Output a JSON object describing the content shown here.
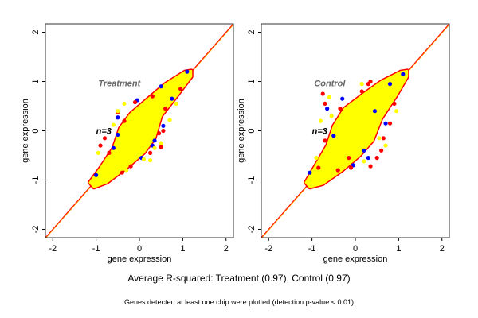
{
  "chart_data": [
    {
      "type": "scatter",
      "title": "Treatment",
      "annotation": "n=3",
      "xlabel": "gene expression",
      "ylabel": "gene expression",
      "xlim": [
        -2.17,
        2.17
      ],
      "ylim": [
        -2.17,
        2.17
      ],
      "xticks": [
        "-2",
        "-1",
        "0",
        "1",
        "2"
      ],
      "yticks": [
        "-2",
        "-1",
        "0",
        "1",
        "2"
      ],
      "grid": false,
      "reference_line": "y = x",
      "colors": {
        "red": "#ff0000",
        "blue": "#0000ff",
        "yellow": "#ffff00",
        "line1": "#ff0000",
        "line2": "#ffa500"
      },
      "core_envelope": [
        [
          -1.15,
          -1.05
        ],
        [
          -0.9,
          -0.75
        ],
        [
          -0.6,
          -0.35
        ],
        [
          -0.45,
          0.05
        ],
        [
          -0.2,
          0.35
        ],
        [
          0.2,
          0.65
        ],
        [
          0.6,
          0.95
        ],
        [
          1.05,
          1.2
        ],
        [
          1.2,
          1.22
        ],
        [
          1.2,
          1.1
        ],
        [
          0.9,
          0.75
        ],
        [
          0.5,
          0.3
        ],
        [
          0.35,
          -0.15
        ],
        [
          0.1,
          -0.45
        ],
        [
          -0.3,
          -0.75
        ],
        [
          -0.75,
          -1.05
        ],
        [
          -1.05,
          -1.15
        ]
      ],
      "series": [
        {
          "color": "blue",
          "points": [
            [
              -0.5,
              0.27
            ],
            [
              -0.5,
              -0.08
            ],
            [
              0.55,
              0.1
            ],
            [
              0.35,
              -0.2
            ],
            [
              -0.05,
              0.62
            ],
            [
              0.5,
              0.9
            ],
            [
              1.1,
              1.2
            ],
            [
              -1.0,
              -0.9
            ],
            [
              0.3,
              -0.3
            ],
            [
              0.05,
              -0.55
            ],
            [
              -0.6,
              -0.35
            ],
            [
              0.75,
              0.65
            ]
          ]
        },
        {
          "color": "red",
          "points": [
            [
              -0.5,
              0.38
            ],
            [
              -0.9,
              -0.3
            ],
            [
              0.5,
              -0.33
            ],
            [
              -0.4,
              -0.85
            ],
            [
              -0.2,
              -0.72
            ],
            [
              0.25,
              -0.45
            ],
            [
              0.6,
              0.45
            ],
            [
              0.55,
              0.0
            ],
            [
              -0.7,
              -0.45
            ],
            [
              -0.1,
              0.58
            ],
            [
              0.95,
              0.85
            ],
            [
              -0.8,
              -0.15
            ],
            [
              0.3,
              0.7
            ],
            [
              0.45,
              -0.05
            ],
            [
              -0.35,
              0.2
            ]
          ],
          "label": ""
        },
        {
          "color": "yellow",
          "points": [
            [
              -0.35,
              0.55
            ],
            [
              -0.5,
              0.4
            ],
            [
              -0.6,
              0.12
            ],
            [
              0.7,
              0.22
            ],
            [
              0.25,
              -0.6
            ],
            [
              0.1,
              -0.58
            ],
            [
              -0.3,
              -0.8
            ],
            [
              -0.6,
              -0.65
            ],
            [
              0.35,
              -0.35
            ],
            [
              0.85,
              0.55
            ],
            [
              -0.95,
              -0.45
            ],
            [
              0.5,
              -0.25
            ]
          ]
        }
      ]
    },
    {
      "type": "scatter",
      "title": "Control",
      "annotation": "n=3",
      "xlabel": "gene expression",
      "ylabel": "gene expression",
      "xlim": [
        -2.17,
        2.17
      ],
      "ylim": [
        -2.17,
        2.17
      ],
      "xticks": [
        "-2",
        "-1",
        "0",
        "1",
        "2"
      ],
      "yticks": [
        "-2",
        "-1",
        "0",
        "1",
        "2"
      ],
      "grid": false,
      "reference_line": "y = x",
      "colors": {
        "red": "#ff0000",
        "blue": "#0000ff",
        "yellow": "#ffff00",
        "line1": "#ff0000",
        "line2": "#ffa500"
      },
      "core_envelope": [
        [
          -1.15,
          -1.05
        ],
        [
          -0.95,
          -0.75
        ],
        [
          -0.65,
          -0.3
        ],
        [
          -0.5,
          0.1
        ],
        [
          -0.25,
          0.45
        ],
        [
          0.2,
          0.75
        ],
        [
          0.6,
          1.0
        ],
        [
          1.05,
          1.2
        ],
        [
          1.2,
          1.22
        ],
        [
          1.2,
          1.1
        ],
        [
          0.95,
          0.72
        ],
        [
          0.6,
          0.25
        ],
        [
          0.4,
          -0.2
        ],
        [
          0.1,
          -0.5
        ],
        [
          -0.3,
          -0.8
        ],
        [
          -0.75,
          -1.08
        ],
        [
          -1.05,
          -1.15
        ]
      ],
      "series": [
        {
          "color": "blue",
          "points": [
            [
              -0.65,
              0.45
            ],
            [
              -0.5,
              -0.1
            ],
            [
              0.3,
              -0.55
            ],
            [
              -0.05,
              -0.7
            ],
            [
              0.8,
              0.95
            ],
            [
              1.1,
              1.15
            ],
            [
              -1.05,
              -0.85
            ],
            [
              0.45,
              0.4
            ],
            [
              0.2,
              -0.4
            ],
            [
              -0.3,
              0.65
            ],
            [
              0.7,
              0.15
            ]
          ]
        },
        {
          "color": "red",
          "points": [
            [
              -0.75,
              0.75
            ],
            [
              -0.7,
              0.55
            ],
            [
              0.35,
              1.0
            ],
            [
              0.3,
              0.95
            ],
            [
              0.8,
              0.15
            ],
            [
              0.5,
              -0.55
            ],
            [
              0.6,
              -0.4
            ],
            [
              -0.4,
              -0.8
            ],
            [
              -0.1,
              -0.75
            ],
            [
              0.35,
              -0.72
            ],
            [
              -0.7,
              -0.2
            ],
            [
              -0.85,
              -0.75
            ],
            [
              0.9,
              0.55
            ],
            [
              -0.35,
              0.45
            ],
            [
              0.15,
              0.8
            ],
            [
              -0.15,
              -0.55
            ],
            [
              0.65,
              -0.15
            ]
          ]
        },
        {
          "color": "yellow",
          "points": [
            [
              -0.6,
              0.68
            ],
            [
              -0.55,
              0.3
            ],
            [
              0.15,
              0.95
            ],
            [
              0.95,
              0.4
            ],
            [
              0.7,
              -0.3
            ],
            [
              0.2,
              -0.62
            ],
            [
              -0.3,
              -0.65
            ],
            [
              -0.9,
              -0.55
            ],
            [
              -0.8,
              0.2
            ],
            [
              0.4,
              0.85
            ],
            [
              0.55,
              -0.15
            ]
          ]
        }
      ]
    }
  ],
  "footer": {
    "summary": "Average R-squared: Treatment (0.97), Control (0.97)",
    "note": "Genes detected at least one chip were plotted (detection p-value < 0.01)"
  }
}
